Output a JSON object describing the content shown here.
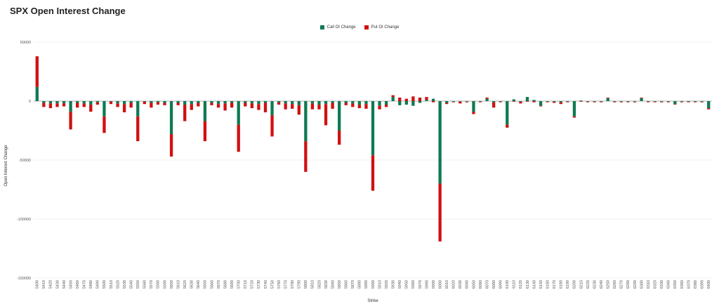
{
  "chart_data": {
    "type": "bar",
    "title": "SPX Open Interest Change",
    "xlabel": "Strike",
    "ylabel": "Open Interest Change",
    "ylim": [
      -150000,
      50000
    ],
    "yticks": [
      50000,
      0,
      -50000,
      -100000,
      -150000
    ],
    "grid": true,
    "legend_position": "top",
    "stacked": true,
    "categories": [
      "5400",
      "5410",
      "5420",
      "5430",
      "5440",
      "5450",
      "5460",
      "5470",
      "5480",
      "5490",
      "5500",
      "5510",
      "5520",
      "5530",
      "5540",
      "5550",
      "5560",
      "5570",
      "5580",
      "5590",
      "5600",
      "5610",
      "5620",
      "5630",
      "5640",
      "5650",
      "5660",
      "5670",
      "5680",
      "5690",
      "5700",
      "5710",
      "5720",
      "5730",
      "5740",
      "5750",
      "5760",
      "5770",
      "5780",
      "5790",
      "5800",
      "5810",
      "5820",
      "5830",
      "5840",
      "5850",
      "5860",
      "5870",
      "5880",
      "5890",
      "5900",
      "5910",
      "5920",
      "5930",
      "5940",
      "5950",
      "5960",
      "5970",
      "5980",
      "5990",
      "6000",
      "6010",
      "6020",
      "6030",
      "6040",
      "6050",
      "6060",
      "6070",
      "6080",
      "6090",
      "6100",
      "6110",
      "6120",
      "6130",
      "6140",
      "6150",
      "6160",
      "6170",
      "6180",
      "6190",
      "6200",
      "6210",
      "6220",
      "6230",
      "6240",
      "6250",
      "6260",
      "6270",
      "6280",
      "6290",
      "6300",
      "6310",
      "6320",
      "6330",
      "6340",
      "6350",
      "6360",
      "6370",
      "6380",
      "6390",
      "6400"
    ],
    "series": [
      {
        "name": "Call OI Change",
        "color": "#0f7a52",
        "values": [
          12000,
          -1500,
          -2000,
          -2000,
          -2000,
          -9000,
          -1500,
          -2000,
          -3000,
          -1000,
          -13000,
          -500,
          -2000,
          -2500,
          -1500,
          -13000,
          -500,
          -1500,
          -1000,
          -1500,
          -28000,
          -1500,
          -3000,
          -2500,
          -1500,
          -17000,
          -1500,
          -2500,
          -2000,
          -1500,
          -20000,
          -1500,
          -2000,
          -2500,
          -1500,
          -12000,
          -1000,
          -2000,
          -2500,
          -3500,
          -34000,
          -2000,
          -3000,
          -2500,
          -1500,
          -25000,
          -1500,
          -2000,
          -3000,
          -2500,
          -46000,
          -4000,
          -3000,
          3500,
          -3500,
          -3000,
          -4000,
          -1500,
          1000,
          2000,
          -70000,
          -1500,
          -500,
          -500,
          -500,
          -9000,
          -500,
          2000,
          -1000,
          -500,
          -20000,
          1500,
          -500,
          3500,
          1000,
          -4000,
          -500,
          -500,
          -1000,
          -500,
          -13000,
          500,
          -500,
          -500,
          -500,
          2500,
          -500,
          -500,
          -500,
          -500,
          2500,
          -500,
          -500,
          -500,
          -500,
          -2500,
          -500,
          -500,
          -500,
          -500,
          -6000
        ]
      },
      {
        "name": "Put OI Change",
        "color": "#d11010",
        "values": [
          26000,
          -3500,
          -4000,
          -3000,
          -2500,
          -15000,
          -4000,
          -3000,
          -6000,
          -2000,
          -14000,
          -2000,
          -3000,
          -7000,
          -4000,
          -21000,
          -2000,
          -4000,
          -2000,
          -2000,
          -19000,
          -2000,
          -14000,
          -5000,
          -3000,
          -17000,
          -2000,
          -3000,
          -6000,
          -4000,
          -23000,
          -3000,
          -4000,
          -5000,
          -8000,
          -18000,
          -2000,
          -5000,
          -4000,
          -8000,
          -26000,
          -5000,
          -4000,
          -18000,
          -5000,
          -12000,
          -2000,
          -3000,
          -3000,
          -4000,
          -30000,
          -3000,
          -2000,
          1500,
          3000,
          2000,
          4000,
          3000,
          2500,
          -1000,
          -49000,
          -1000,
          -500,
          -1500,
          -500,
          -2000,
          -500,
          1000,
          -4500,
          -500,
          -2500,
          -500,
          -1500,
          -500,
          -1000,
          -500,
          -500,
          -1000,
          -1500,
          -500,
          -1000,
          -500,
          -500,
          -500,
          -500,
          500,
          -500,
          -500,
          -500,
          -500,
          500,
          -500,
          -500,
          -500,
          -500,
          -500,
          -500,
          -500,
          -500,
          -500,
          -1000
        ]
      }
    ]
  }
}
